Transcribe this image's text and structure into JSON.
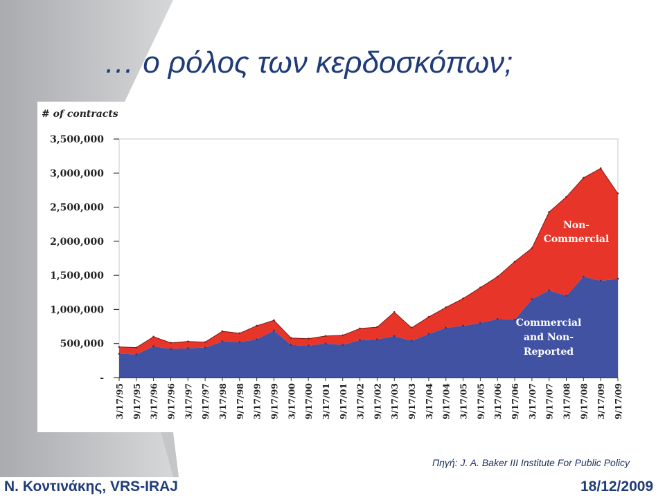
{
  "slide": {
    "title": "… ο ρόλος των κερδοσκόπων;",
    "source": "Πηγή: J. A. Baker III Institute For Public Policy",
    "author": "Ν. Κοντινάκης, VRS-IRAJ",
    "date": "18/12/2009"
  },
  "chart_data": {
    "type": "area",
    "stacked": true,
    "ylabel": "# of contracts",
    "ylim": [
      0,
      3500000
    ],
    "yticks": [
      0,
      500000,
      1000000,
      1500000,
      2000000,
      2500000,
      3000000,
      3500000
    ],
    "ytick_labels": [
      "-",
      "500,000",
      "1,000,000",
      "1,500,000",
      "2,000,000",
      "2,500,000",
      "3,000,000",
      "3,500,000"
    ],
    "categories": [
      "3/17/95",
      "9/17/95",
      "3/17/96",
      "9/17/96",
      "3/17/97",
      "9/17/97",
      "3/17/98",
      "9/17/98",
      "3/17/99",
      "9/17/99",
      "3/17/00",
      "9/17/00",
      "3/17/01",
      "9/17/01",
      "3/17/02",
      "9/17/02",
      "3/17/03",
      "9/17/03",
      "3/17/04",
      "9/17/04",
      "3/17/05",
      "9/17/05",
      "3/17/06",
      "9/17/06",
      "3/17/07",
      "9/17/07",
      "3/17/08",
      "9/17/08",
      "3/17/09",
      "9/17/09"
    ],
    "series": [
      {
        "name": "Commercial and Non-Reported",
        "color": "#4152a3",
        "values": [
          350000,
          340000,
          460000,
          420000,
          430000,
          440000,
          530000,
          520000,
          560000,
          690000,
          480000,
          470000,
          500000,
          480000,
          550000,
          560000,
          610000,
          540000,
          640000,
          730000,
          760000,
          800000,
          860000,
          850000,
          1150000,
          1280000,
          1200000,
          1480000,
          1420000,
          1450000
        ]
      },
      {
        "name": "Non-Commercial",
        "color": "#e8352a",
        "values": [
          100000,
          100000,
          140000,
          90000,
          100000,
          80000,
          150000,
          130000,
          200000,
          150000,
          100000,
          100000,
          110000,
          140000,
          170000,
          180000,
          350000,
          190000,
          250000,
          300000,
          400000,
          520000,
          620000,
          850000,
          750000,
          1150000,
          1450000,
          1450000,
          1650000,
          1250000
        ]
      }
    ],
    "annotations": [
      "Non-\nCommercial",
      "Commercial\nand Non-\nReported"
    ]
  }
}
